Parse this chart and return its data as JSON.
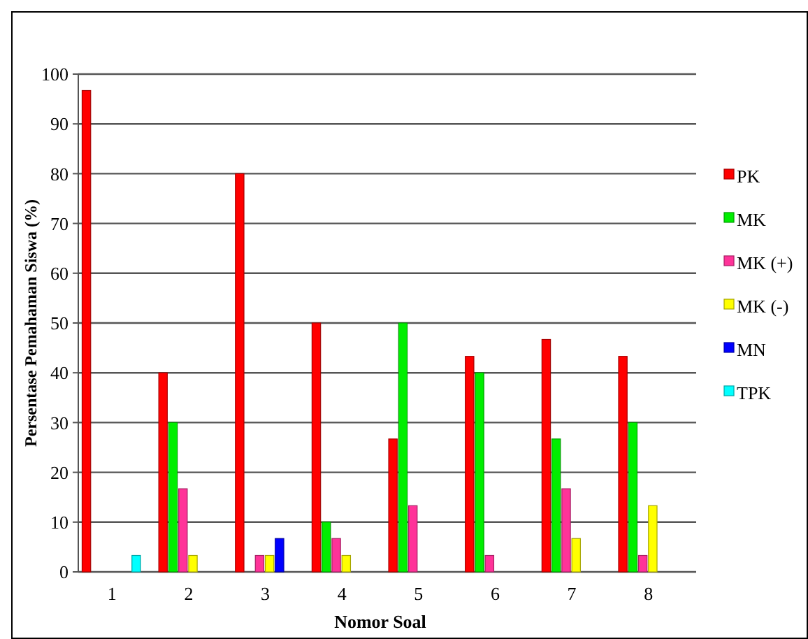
{
  "chart_data": {
    "type": "bar",
    "xlabel": "Nomor Soal",
    "ylabel": "Persentase Pemahaman Siswa (%)",
    "categories": [
      "1",
      "2",
      "3",
      "4",
      "5",
      "6",
      "7",
      "8"
    ],
    "series": [
      {
        "name": "PK",
        "color": "#ff0000",
        "values": [
          96.7,
          40,
          80,
          50,
          26.7,
          43.3,
          46.7,
          43.3
        ]
      },
      {
        "name": "MK",
        "color": "#00ee00",
        "values": [
          0,
          30,
          0,
          10,
          50,
          40,
          26.7,
          30
        ]
      },
      {
        "name": "MK (+)",
        "color": "#ff3399",
        "values": [
          0,
          16.7,
          3.3,
          6.7,
          13.3,
          3.3,
          16.7,
          3.3
        ]
      },
      {
        "name": "MK (-)",
        "color": "#ffff00",
        "values": [
          0,
          3.3,
          3.3,
          3.3,
          0,
          0,
          6.7,
          13.3
        ]
      },
      {
        "name": "MN",
        "color": "#0000ff",
        "values": [
          0,
          0,
          6.7,
          0,
          0,
          0,
          0,
          0
        ]
      },
      {
        "name": "TPK",
        "color": "#00ffff",
        "values": [
          3.3,
          0,
          0,
          0,
          0,
          0,
          0,
          0
        ]
      }
    ],
    "ylim": [
      0,
      100
    ],
    "yticks": [
      0,
      10,
      20,
      30,
      40,
      50,
      60,
      70,
      80,
      90,
      100
    ],
    "grid": "y",
    "legend": "right"
  }
}
